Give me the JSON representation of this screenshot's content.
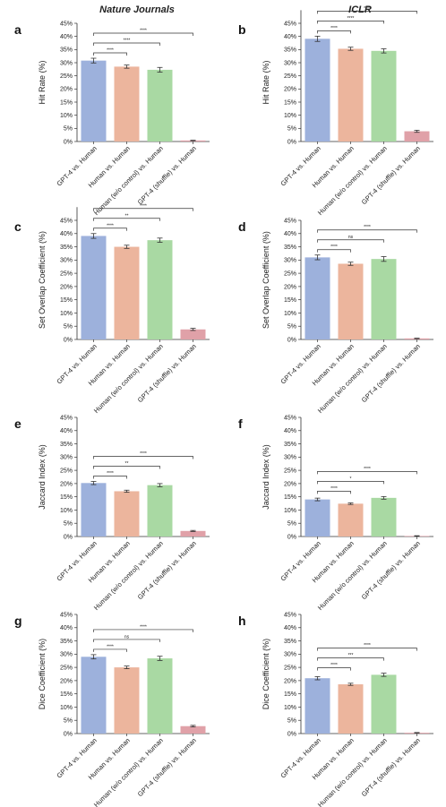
{
  "column_titles": [
    "Nature Journals",
    "ICLR"
  ],
  "colors": [
    "#9db1dc",
    "#ecb59d",
    "#a9d9a3",
    "#e0a1a8"
  ],
  "chart_data": [
    {
      "panel": "a",
      "type": "bar",
      "categories": [
        "GPT-4 vs. Human",
        "Human vs. Human",
        "Human (w/o control) vs. Human",
        "GPT-4 (shuffle) vs. Human"
      ],
      "values": [
        30.8,
        28.5,
        27.3,
        0.4
      ],
      "errors": [
        0.9,
        0.6,
        0.9,
        0.1
      ],
      "ylabel": "Hit Rate (%)",
      "ylim": [
        0,
        45
      ],
      "yticks": [
        "0%",
        "5%",
        "10%",
        "15%",
        "20%",
        "25%",
        "30%",
        "35%",
        "40%",
        "45%"
      ],
      "brackets": [
        {
          "from": 0,
          "to": 1,
          "label": "****"
        },
        {
          "from": 0,
          "to": 2,
          "label": "****"
        },
        {
          "from": 0,
          "to": 3,
          "label": "****"
        }
      ]
    },
    {
      "panel": "b",
      "type": "bar",
      "categories": [
        "GPT-4 vs. Human",
        "Human vs. Human",
        "Human (w/o control) vs. Human",
        "GPT-4 (shuffle) vs. Human"
      ],
      "values": [
        39.1,
        35.3,
        34.5,
        3.9
      ],
      "errors": [
        1.0,
        0.6,
        0.8,
        0.4
      ],
      "ylabel": "Hit Rate (%)",
      "ylim": [
        0,
        50
      ],
      "yticks": [
        "0%",
        "5%",
        "10%",
        "15%",
        "20%",
        "25%",
        "30%",
        "35%",
        "40%",
        "45%"
      ],
      "brackets": [
        {
          "from": 0,
          "to": 1,
          "label": "****"
        },
        {
          "from": 0,
          "to": 2,
          "label": "****"
        },
        {
          "from": 0,
          "to": 3,
          "label": "****"
        }
      ]
    },
    {
      "panel": "c",
      "type": "bar",
      "categories": [
        "GPT-4 vs. Human",
        "Human vs. Human",
        "Human (w/o control) vs. Human",
        "GPT-4 (shuffle) vs. Human"
      ],
      "values": [
        39.1,
        35.0,
        37.5,
        3.8
      ],
      "errors": [
        0.9,
        0.6,
        0.8,
        0.4
      ],
      "ylabel": "Set Overlap Coefficient (%)",
      "ylim": [
        0,
        50
      ],
      "yticks": [
        "0%",
        "5%",
        "10%",
        "15%",
        "20%",
        "25%",
        "30%",
        "35%",
        "40%",
        "45%"
      ],
      "brackets": [
        {
          "from": 0,
          "to": 1,
          "label": "****"
        },
        {
          "from": 0,
          "to": 2,
          "label": "**"
        },
        {
          "from": 0,
          "to": 3,
          "label": "****"
        }
      ]
    },
    {
      "panel": "d",
      "type": "bar",
      "categories": [
        "GPT-4 vs. Human",
        "Human vs. Human",
        "Human (w/o control) vs. Human",
        "GPT-4 (shuffle) vs. Human"
      ],
      "values": [
        31.0,
        28.6,
        30.4,
        0.4
      ],
      "errors": [
        0.9,
        0.6,
        0.9,
        0.1
      ],
      "ylabel": "Set Overlap Coefficient (%)",
      "ylim": [
        0,
        45
      ],
      "yticks": [
        "0%",
        "5%",
        "10%",
        "15%",
        "20%",
        "25%",
        "30%",
        "35%",
        "40%",
        "45%"
      ],
      "brackets": [
        {
          "from": 0,
          "to": 1,
          "label": "****"
        },
        {
          "from": 0,
          "to": 2,
          "label": "ns"
        },
        {
          "from": 0,
          "to": 3,
          "label": "****"
        }
      ]
    },
    {
      "panel": "e",
      "type": "bar",
      "categories": [
        "GPT-4 vs. Human",
        "Human vs. Human",
        "Human (w/o control) vs. Human",
        "GPT-4 (shuffle) vs. Human"
      ],
      "values": [
        20.2,
        17.1,
        19.4,
        2.1
      ],
      "errors": [
        0.6,
        0.4,
        0.6,
        0.2
      ],
      "ylabel": "Jaccard Index (%)",
      "ylim": [
        0,
        45
      ],
      "yticks": [
        "0%",
        "5%",
        "10%",
        "15%",
        "20%",
        "25%",
        "30%",
        "35%",
        "40%",
        "45%"
      ],
      "brackets": [
        {
          "from": 0,
          "to": 1,
          "label": "****"
        },
        {
          "from": 0,
          "to": 2,
          "label": "**"
        },
        {
          "from": 0,
          "to": 3,
          "label": "****"
        }
      ]
    },
    {
      "panel": "f",
      "type": "bar",
      "categories": [
        "GPT-4 vs. Human",
        "Human vs. Human",
        "Human (w/o control) vs. Human",
        "GPT-4 (shuffle) vs. Human"
      ],
      "values": [
        14.0,
        12.4,
        14.6,
        0.2
      ],
      "errors": [
        0.5,
        0.3,
        0.5,
        0.1
      ],
      "ylabel": "Jaccard Index (%)",
      "ylim": [
        0,
        45
      ],
      "yticks": [
        "0%",
        "5%",
        "10%",
        "15%",
        "20%",
        "25%",
        "30%",
        "35%",
        "40%",
        "45%"
      ],
      "brackets": [
        {
          "from": 0,
          "to": 1,
          "label": "****"
        },
        {
          "from": 0,
          "to": 2,
          "label": "*"
        },
        {
          "from": 0,
          "to": 3,
          "label": "****"
        }
      ]
    },
    {
      "panel": "g",
      "type": "bar",
      "categories": [
        "GPT-4 vs. Human",
        "Human vs. Human",
        "Human (w/o control) vs. Human",
        "GPT-4 (shuffle) vs. Human"
      ],
      "values": [
        29.0,
        25.0,
        28.4,
        2.8
      ],
      "errors": [
        0.8,
        0.5,
        0.8,
        0.3
      ],
      "ylabel": "Dice Coefficient (%)",
      "ylim": [
        0,
        45
      ],
      "yticks": [
        "0%",
        "5%",
        "10%",
        "15%",
        "20%",
        "25%",
        "30%",
        "35%",
        "40%",
        "45%"
      ],
      "brackets": [
        {
          "from": 0,
          "to": 1,
          "label": "****"
        },
        {
          "from": 0,
          "to": 2,
          "label": "ns"
        },
        {
          "from": 0,
          "to": 3,
          "label": "****"
        }
      ]
    },
    {
      "panel": "h",
      "type": "bar",
      "categories": [
        "GPT-4 vs. Human",
        "Human vs. Human",
        "Human (w/o control) vs. Human",
        "GPT-4 (shuffle) vs. Human"
      ],
      "values": [
        20.9,
        18.6,
        22.2,
        0.3
      ],
      "errors": [
        0.6,
        0.4,
        0.6,
        0.1
      ],
      "ylabel": "Dice Coefficient (%)",
      "ylim": [
        0,
        45
      ],
      "yticks": [
        "0%",
        "5%",
        "10%",
        "15%",
        "20%",
        "25%",
        "30%",
        "35%",
        "40%",
        "45%"
      ],
      "brackets": [
        {
          "from": 0,
          "to": 1,
          "label": "****"
        },
        {
          "from": 0,
          "to": 2,
          "label": "***"
        },
        {
          "from": 0,
          "to": 3,
          "label": "****"
        }
      ]
    }
  ]
}
